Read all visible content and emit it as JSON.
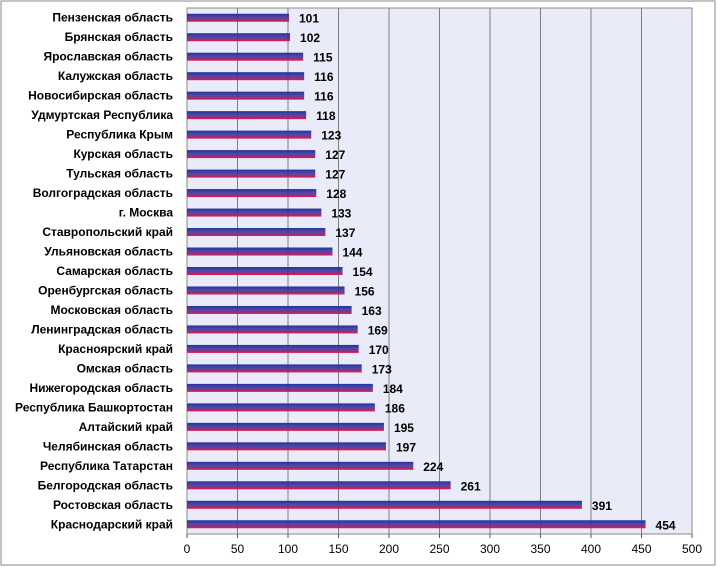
{
  "chart_data": {
    "type": "bar",
    "orientation": "horizontal",
    "categories": [
      "Пензенская область",
      "Брянская область",
      "Ярославская область",
      "Калужская область",
      "Новосибирская область",
      "Удмуртская Республика",
      "Республика Крым",
      "Курская область",
      "Тульская область",
      "Волгоградская область",
      "г. Москва",
      "Ставропольский край",
      "Ульяновская область",
      "Самарская область",
      "Оренбургская область",
      "Московская область",
      "Ленинградская область",
      "Красноярский край",
      "Омская область",
      "Нижегородская область",
      "Республика Башкортостан",
      "Алтайский край",
      "Челябинская область",
      "Республика Татарстан",
      "Белгородская область",
      "Ростовская область",
      "Краснодарский край"
    ],
    "values": [
      101,
      102,
      115,
      116,
      116,
      118,
      123,
      127,
      127,
      128,
      133,
      137,
      144,
      154,
      156,
      163,
      169,
      170,
      173,
      184,
      186,
      195,
      197,
      224,
      261,
      391,
      454
    ],
    "xlim": [
      0,
      500
    ],
    "xticks": [
      "0",
      "50",
      "100",
      "150",
      "200",
      "250",
      "300",
      "350",
      "400",
      "450",
      "500"
    ],
    "grid": true,
    "legend": "none",
    "colors": {
      "plot_background": "#e9ecf8",
      "bar_top": "#2a2f9c",
      "bar_bottom": "#e8154f",
      "grid": "#7f7f7f"
    }
  }
}
